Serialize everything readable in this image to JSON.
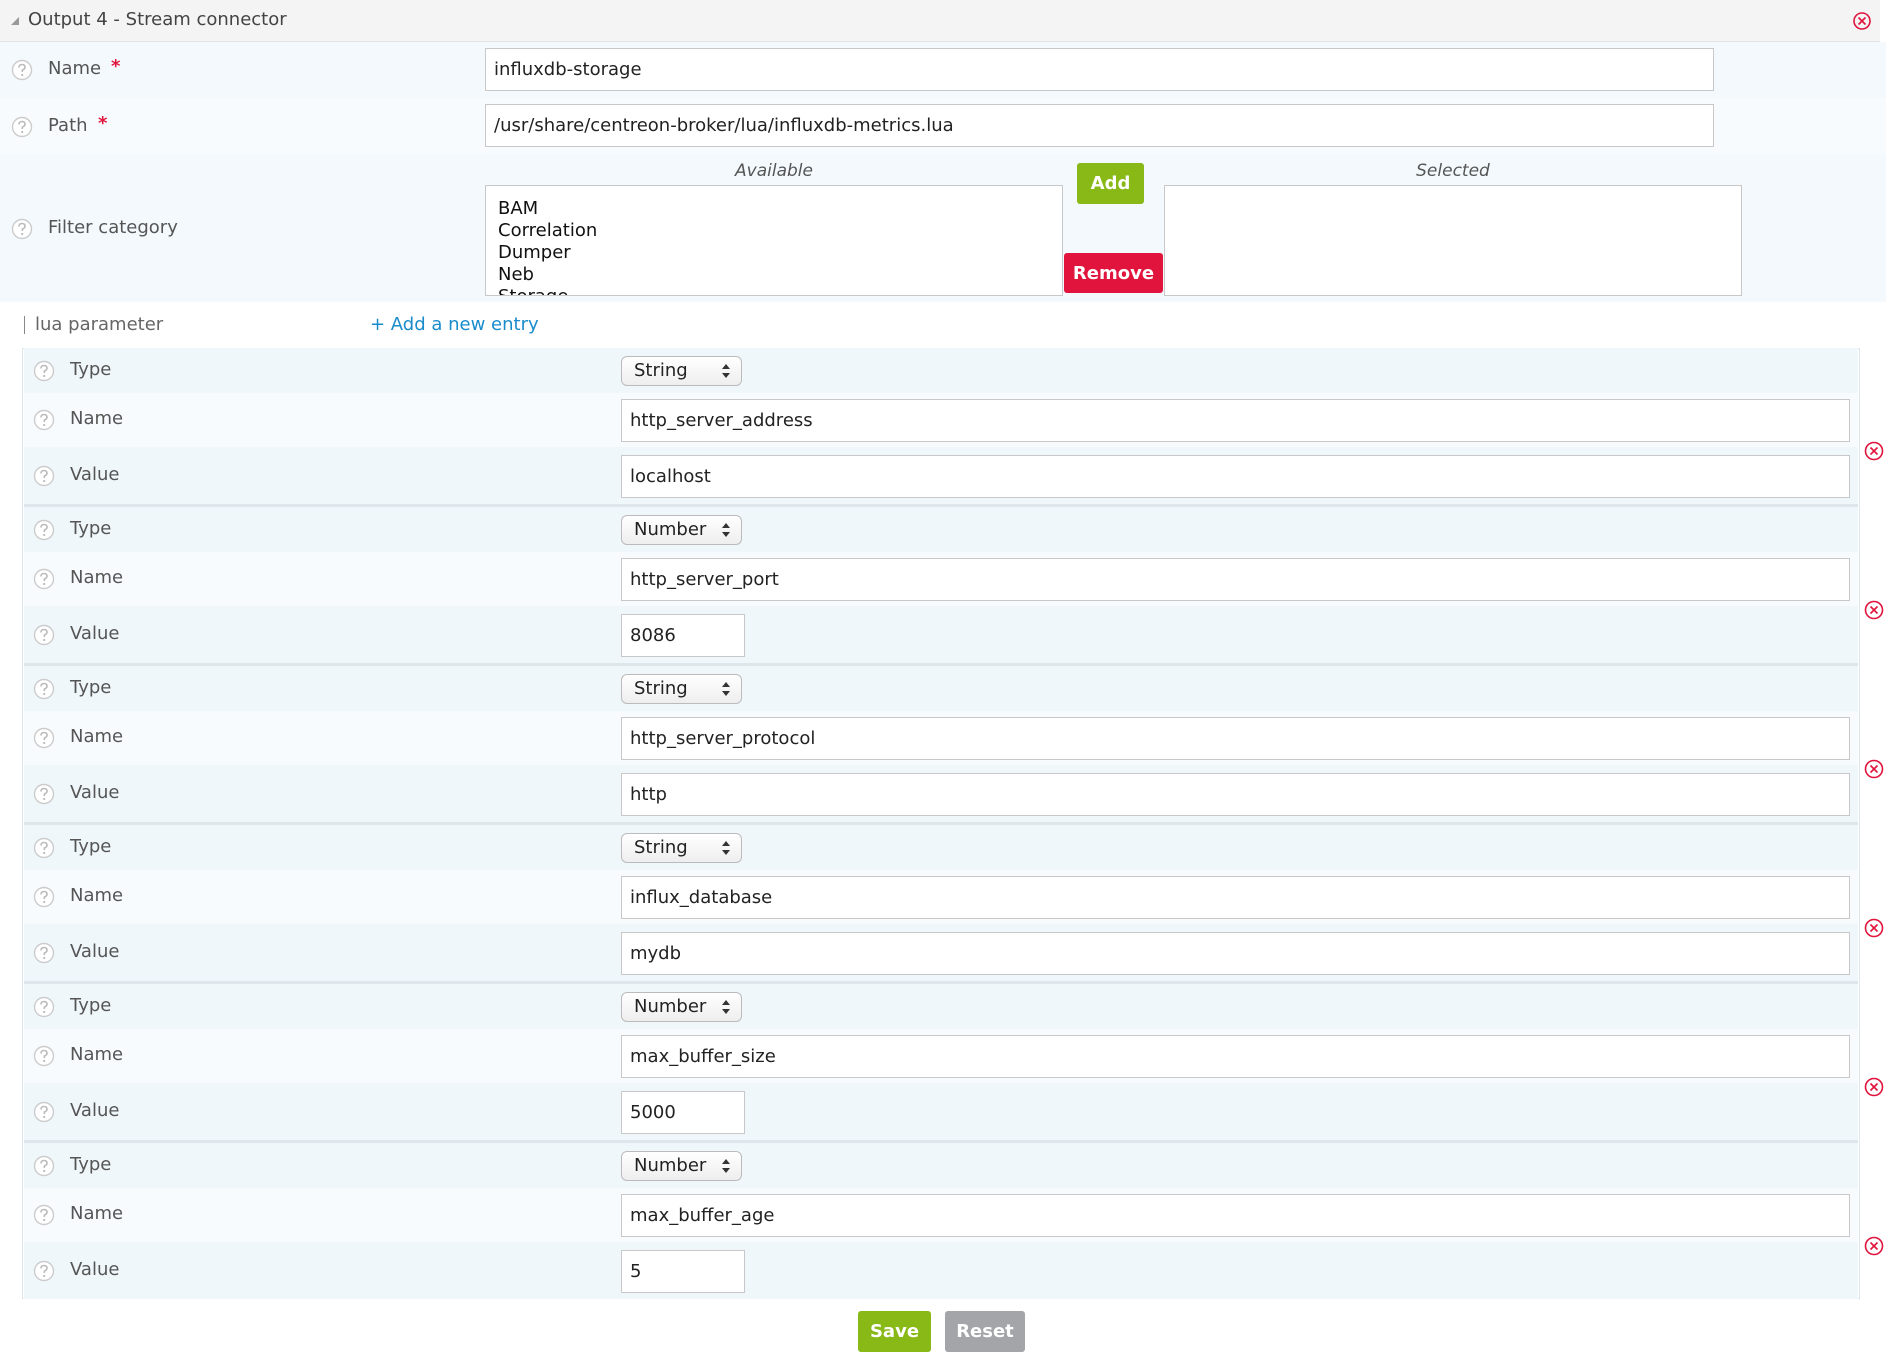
{
  "header": {
    "title": "Output 4 - Stream connector"
  },
  "fields": [
    {
      "label": "Name",
      "required": "*",
      "value": "influxdb-storage"
    },
    {
      "label": "Path",
      "required": "*",
      "value": "/usr/share/centreon-broker/lua/influxdb-metrics.lua"
    }
  ],
  "filter": {
    "label": "Filter category",
    "available_title": "Available",
    "selected_title": "Selected",
    "available": [
      "BAM",
      "Correlation",
      "Dumper",
      "Neb",
      "Storage"
    ],
    "add": "Add",
    "remove": "Remove"
  },
  "lua": {
    "label": "lua parameter",
    "add_entry": "+ Add a new entry",
    "entries": [
      {
        "type_label": "Type",
        "type": "String",
        "name_label": "Name",
        "name": "http_server_address",
        "value_label": "Value",
        "value": "localhost"
      },
      {
        "type_label": "Type",
        "type": "Number",
        "name_label": "Name",
        "name": "http_server_port",
        "value_label": "Value",
        "value": "8086"
      },
      {
        "type_label": "Type",
        "type": "String",
        "name_label": "Name",
        "name": "http_server_protocol",
        "value_label": "Value",
        "value": "http"
      },
      {
        "type_label": "Type",
        "type": "String",
        "name_label": "Name",
        "name": "influx_database",
        "value_label": "Value",
        "value": "mydb"
      },
      {
        "type_label": "Type",
        "type": "Number",
        "name_label": "Name",
        "name": "max_buffer_size",
        "value_label": "Value",
        "value": "5000"
      },
      {
        "type_label": "Type",
        "type": "Number",
        "name_label": "Name",
        "name": "max_buffer_age",
        "value_label": "Value",
        "value": "5"
      }
    ]
  },
  "buttons": {
    "save": "Save",
    "reset": "Reset"
  }
}
